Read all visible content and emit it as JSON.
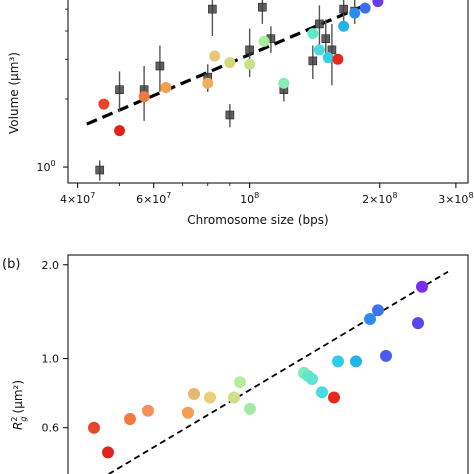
{
  "chart_data": [
    {
      "type": "scatter",
      "panel_label": "",
      "xlabel": "Chromosome size (bps)",
      "ylabel": "Volume (μm³)",
      "x_scale": "log",
      "y_scale": "log",
      "xlim": [
        38000000,
        320000000
      ],
      "ylim": [
        0.85,
        5.6
      ],
      "grid": false,
      "x_ticks": [
        {
          "value": 40000000,
          "base": "4×10",
          "exp": "7"
        },
        {
          "value": 60000000,
          "base": "6×10",
          "exp": "7"
        },
        {
          "value": 100000000,
          "base": "10",
          "exp": "8"
        },
        {
          "value": 200000000,
          "base": "2×10",
          "exp": "8"
        },
        {
          "value": 300000000,
          "base": "3×10",
          "exp": "8"
        }
      ],
      "y_ticks": [
        {
          "value": 1,
          "base": "10",
          "exp": "0"
        }
      ],
      "fit_line": {
        "x": [
          42000000,
          185000000
        ],
        "y": [
          1.55,
          5.2
        ],
        "style": "dashed",
        "color": "#000000"
      },
      "series": [
        {
          "marker": "square",
          "color": "#3a3a3a",
          "points": [
            {
              "x": 45000000,
              "y": 0.97,
              "err": 0.1
            },
            {
              "x": 50000000,
              "y": 2.2,
              "err": 0.45
            },
            {
              "x": 57000000,
              "y": 2.2,
              "err": 0.6
            },
            {
              "x": 62000000,
              "y": 2.8,
              "err": 0.65
            },
            {
              "x": 80000000,
              "y": 2.5,
              "err": 0.35
            },
            {
              "x": 82000000,
              "y": 5.0,
              "err": 1.2
            },
            {
              "x": 90000000,
              "y": 1.7,
              "err": 0.2
            },
            {
              "x": 100000000,
              "y": 3.3,
              "err": 0.8
            },
            {
              "x": 107000000,
              "y": 5.1,
              "err": 0.8
            },
            {
              "x": 112000000,
              "y": 3.7,
              "err": 0.5
            },
            {
              "x": 120000000,
              "y": 2.2,
              "err": 0.25
            },
            {
              "x": 140000000,
              "y": 2.95,
              "err": 0.5
            },
            {
              "x": 145000000,
              "y": 4.3,
              "err": 0.9
            },
            {
              "x": 150000000,
              "y": 3.7,
              "err": 0.8
            },
            {
              "x": 155000000,
              "y": 3.3,
              "err": 1.0
            },
            {
              "x": 165000000,
              "y": 5.0,
              "err": 0.8
            },
            {
              "x": 175000000,
              "y": 4.9,
              "err": 0.6
            }
          ]
        },
        {
          "marker": "circle",
          "color_map": "rainbow",
          "points": [
            {
              "x": 46000000,
              "y": 1.9,
              "color": "#e8452c"
            },
            {
              "x": 50000000,
              "y": 1.45,
              "color": "#e0231c"
            },
            {
              "x": 57000000,
              "y": 2.05,
              "color": "#f07a3e"
            },
            {
              "x": 64000000,
              "y": 2.25,
              "color": "#f4a048"
            },
            {
              "x": 80000000,
              "y": 2.35,
              "color": "#f0b05a"
            },
            {
              "x": 83000000,
              "y": 3.1,
              "color": "#e8c878"
            },
            {
              "x": 90000000,
              "y": 2.9,
              "color": "#d8d878"
            },
            {
              "x": 100000000,
              "y": 2.85,
              "color": "#c8e288"
            },
            {
              "x": 108000000,
              "y": 3.6,
              "color": "#a6ee9c"
            },
            {
              "x": 120000000,
              "y": 2.35,
              "color": "#8aecb0"
            },
            {
              "x": 140000000,
              "y": 3.9,
              "color": "#60e8c8"
            },
            {
              "x": 145000000,
              "y": 3.3,
              "color": "#48dbe0"
            },
            {
              "x": 152000000,
              "y": 3.05,
              "color": "#32d0e8"
            },
            {
              "x": 160000000,
              "y": 3.0,
              "color": "#e8281c"
            },
            {
              "x": 165000000,
              "y": 4.2,
              "color": "#22b4e8"
            },
            {
              "x": 175000000,
              "y": 4.8,
              "color": "#2c8cec"
            },
            {
              "x": 185000000,
              "y": 5.05,
              "color": "#3c6cf0"
            },
            {
              "x": 198000000,
              "y": 5.4,
              "color": "#6a3cf0"
            }
          ]
        }
      ]
    },
    {
      "type": "scatter",
      "panel_label": "(b)",
      "xlabel": "",
      "ylabel": "R_g² (μm²)",
      "ylabel_base": "R",
      "ylabel_sub": "g",
      "ylabel_sup": "2",
      "ylabel_unit": "(μm²)",
      "y_scale": "log",
      "xlim": [
        0,
        1
      ],
      "ylim": [
        0.42,
        2.15
      ],
      "grid": false,
      "y_ticks": [
        {
          "value": 0.6,
          "label": "0.6"
        },
        {
          "value": 1.0,
          "label": "1.0"
        },
        {
          "value": 2.0,
          "label": "2.0"
        }
      ],
      "fit_line": {
        "x": [
          0.08,
          0.95
        ],
        "y": [
          0.41,
          1.9
        ],
        "style": "dashed",
        "color": "#000000"
      },
      "series": [
        {
          "marker": "circle",
          "points": [
            {
              "x": 0.065,
              "y": 0.6,
              "color": "#e8452c"
            },
            {
              "x": 0.1,
              "y": 0.5,
              "color": "#e0231c"
            },
            {
              "x": 0.155,
              "y": 0.64,
              "color": "#f07a3e"
            },
            {
              "x": 0.2,
              "y": 0.68,
              "color": "#f4905a"
            },
            {
              "x": 0.3,
              "y": 0.67,
              "color": "#f0a050"
            },
            {
              "x": 0.315,
              "y": 0.77,
              "color": "#e8b870"
            },
            {
              "x": 0.355,
              "y": 0.75,
              "color": "#e8d078"
            },
            {
              "x": 0.415,
              "y": 0.75,
              "color": "#d0e08a"
            },
            {
              "x": 0.43,
              "y": 0.84,
              "color": "#b8ec98"
            },
            {
              "x": 0.455,
              "y": 0.69,
              "color": "#a0eca4"
            },
            {
              "x": 0.59,
              "y": 0.9,
              "color": "#80eab8"
            },
            {
              "x": 0.6,
              "y": 0.88,
              "color": "#66e8c4"
            },
            {
              "x": 0.61,
              "y": 0.86,
              "color": "#5ce4d0"
            },
            {
              "x": 0.635,
              "y": 0.78,
              "color": "#48dce0"
            },
            {
              "x": 0.665,
              "y": 0.75,
              "color": "#e8281c"
            },
            {
              "x": 0.675,
              "y": 0.98,
              "color": "#32cce8"
            },
            {
              "x": 0.72,
              "y": 0.98,
              "color": "#22b4e8"
            },
            {
              "x": 0.755,
              "y": 1.34,
              "color": "#2c8cec"
            },
            {
              "x": 0.775,
              "y": 1.43,
              "color": "#3c74f0"
            },
            {
              "x": 0.795,
              "y": 1.02,
              "color": "#4a5cf0"
            },
            {
              "x": 0.875,
              "y": 1.3,
              "color": "#5a46f0"
            },
            {
              "x": 0.885,
              "y": 1.7,
              "color": "#7a2cf0"
            }
          ]
        }
      ]
    }
  ]
}
